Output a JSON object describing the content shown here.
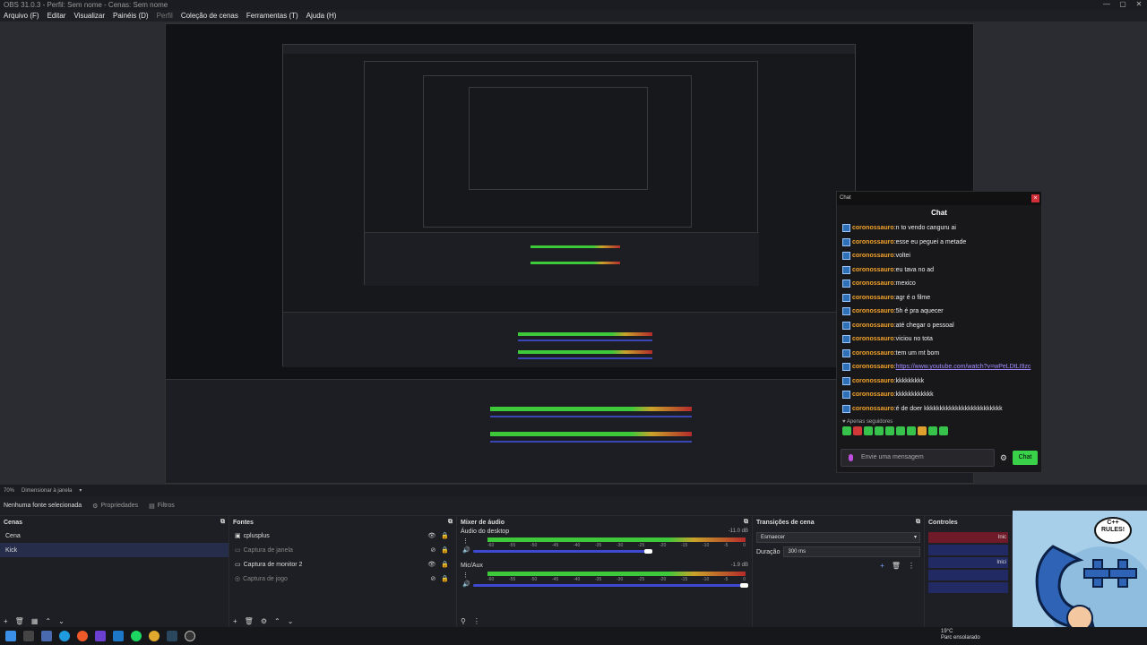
{
  "window": {
    "title": "OBS 31.0.3 - Perfil: Sem nome - Cenas: Sem nome",
    "controls": [
      "—",
      "▢",
      "✕"
    ]
  },
  "menu": [
    "Arquivo (F)",
    "Editar",
    "Visualizar",
    "Painéis (D)",
    "Perfil",
    "Coleção de cenas",
    "Ferramentas (T)",
    "Ajuda (H)"
  ],
  "status": {
    "zoom": "70%",
    "resize": "Dimensionar à janela"
  },
  "toolbar": {
    "no_source": "Nenhuma fonte selecionada",
    "properties": "Propriedades",
    "filters": "Filtros"
  },
  "scenes": {
    "title": "Cenas",
    "items": [
      "Cena",
      "Kick"
    ]
  },
  "sources": {
    "title": "Fontes",
    "items": [
      "cplusplus",
      "Captura de janela",
      "Captura de monitor 2",
      "Captura de jogo"
    ]
  },
  "mixer": {
    "title": "Mixer de áudio",
    "channels": [
      {
        "name": "Áudio do desktop",
        "db": "-11.0 dB"
      },
      {
        "name": "Mic/Aux",
        "db": "-1.9 dB"
      }
    ],
    "ticks": [
      "-60",
      "-55",
      "-50",
      "-45",
      "-40",
      "-35",
      "-30",
      "-25",
      "-20",
      "-15",
      "-10",
      "-5",
      "0"
    ]
  },
  "transitions": {
    "title": "Transições de cena",
    "selected": "Esmaecer",
    "duration_label": "Duração",
    "duration_value": "300 ms"
  },
  "controls": {
    "title": "Controles",
    "buttons": [
      "Inic",
      "Inici"
    ]
  },
  "chat": {
    "header": "Chat",
    "popout_title": "Chat",
    "messages": [
      {
        "user": "coronossauro",
        "text": "n to vendo canguru ai"
      },
      {
        "user": "coronossauro",
        "text": "esse eu peguei a metade"
      },
      {
        "user": "coronossauro",
        "text": "voltei"
      },
      {
        "user": "coronossauro",
        "text": "eu tava no ad"
      },
      {
        "user": "coronossauro",
        "text": "mexico"
      },
      {
        "user": "coronossauro",
        "text": "agr é o filme"
      },
      {
        "user": "coronossauro",
        "text": "5h é pra aquecer"
      },
      {
        "user": "coronossauro",
        "text": "até chegar o pessoal"
      },
      {
        "user": "coronossauro",
        "text": "viciou no tota"
      },
      {
        "user": "coronossauro",
        "text": "tem um mt bom"
      },
      {
        "user": "coronossauro",
        "text": "https://www.youtube.com/watch?v=wPeLDtLI9zc"
      },
      {
        "user": "coronossauro",
        "text": "kkkkkkkkk"
      },
      {
        "user": "coronossauro",
        "text": "kkkkkkkkkkkk"
      },
      {
        "user": "coronossauro",
        "text": "é de doer kkkkkkkkkkkkkkkkkkkkkkkkk"
      }
    ],
    "followers_only": "Apenas seguidores",
    "input_placeholder": "Envie uma mensagem",
    "send": "Chat"
  },
  "weather": {
    "temp": "19°C",
    "desc": "Parc ensolarado"
  },
  "mascot": {
    "bubble_line1": "C++",
    "bubble_line2": "RULES!",
    "logo": "C++"
  }
}
